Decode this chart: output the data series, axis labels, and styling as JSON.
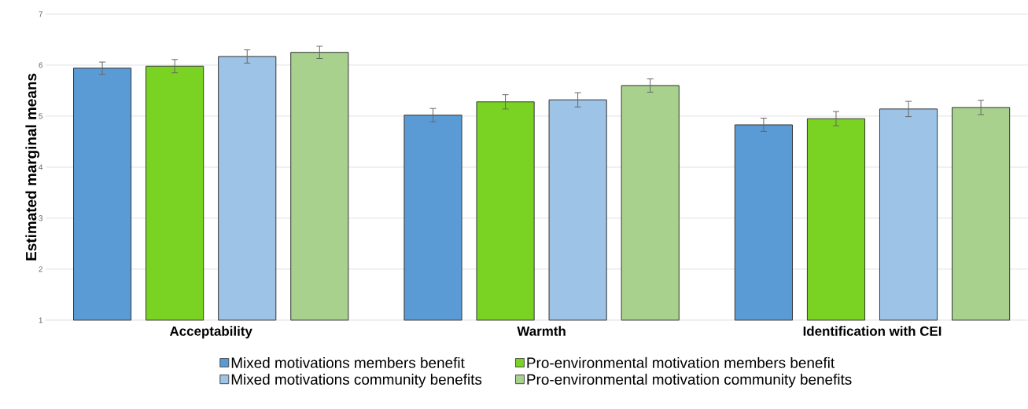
{
  "chart_data": {
    "type": "bar",
    "ylabel": "Estimated marginal means",
    "categories": [
      "Acceptability",
      "Warmth",
      "Identification with CEI"
    ],
    "series": [
      {
        "name": "Mixed motivations members benefit",
        "color": "#5b9bd5",
        "values": [
          5.94,
          5.02,
          4.83
        ],
        "errors": [
          0.12,
          0.13,
          0.13
        ]
      },
      {
        "name": "Pro-environmental motivation members benefit",
        "color": "#7ad322",
        "values": [
          5.98,
          5.28,
          4.95
        ],
        "errors": [
          0.13,
          0.14,
          0.14
        ]
      },
      {
        "name": "Mixed motivations community benefits",
        "color": "#9dc3e6",
        "values": [
          6.17,
          5.32,
          5.14
        ],
        "errors": [
          0.13,
          0.14,
          0.15
        ]
      },
      {
        "name": "Pro-environmental motivation community benefits",
        "color": "#a9d18e",
        "values": [
          6.25,
          5.6,
          5.17
        ],
        "errors": [
          0.12,
          0.13,
          0.14
        ]
      }
    ],
    "ylim": [
      1,
      7
    ],
    "yticks": [
      1,
      2,
      3,
      4,
      5,
      6,
      7
    ],
    "grid": "y",
    "legend": "bottom"
  }
}
